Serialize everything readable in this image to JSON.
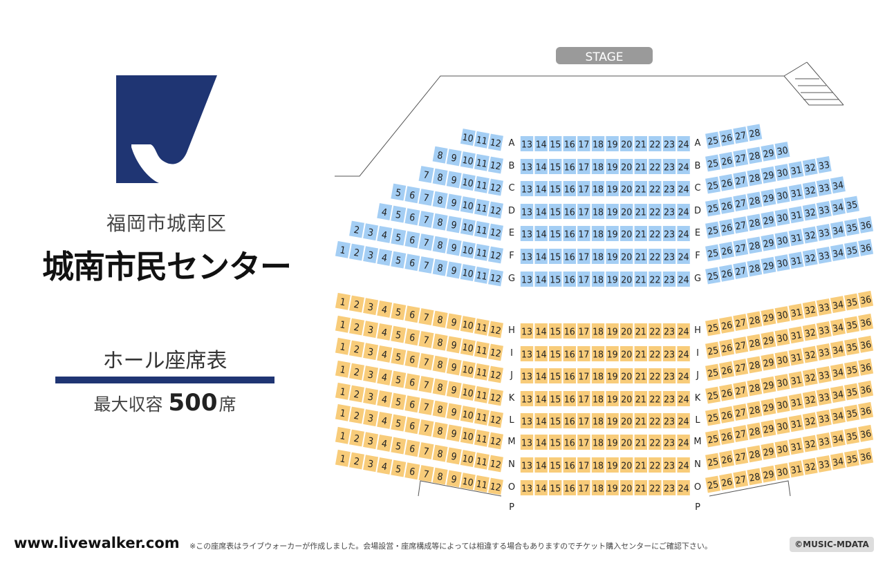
{
  "venue": {
    "subtitle": "福岡市城南区",
    "name": "城南市民センター"
  },
  "hall": {
    "title": "ホール座席表",
    "capacity_label": "最大収容",
    "capacity_value": "500",
    "capacity_unit": "席"
  },
  "stage": {
    "label": "STAGE"
  },
  "colors": {
    "upper": "#a4cef4",
    "lower": "#f8cc7a",
    "brand": "#1f3573"
  },
  "seating": {
    "upper": [
      {
        "row": "A",
        "left": [
          "10",
          "11",
          "12"
        ],
        "center": [
          "13",
          "14",
          "15",
          "16",
          "17",
          "18",
          "19",
          "20",
          "21",
          "22",
          "23",
          "24"
        ],
        "right": [
          "25",
          "26",
          "27",
          "28"
        ]
      },
      {
        "row": "B",
        "left": [
          "8",
          "9",
          "10",
          "11",
          "12"
        ],
        "center": [
          "13",
          "14",
          "15",
          "16",
          "17",
          "18",
          "19",
          "20",
          "21",
          "22",
          "23",
          "24"
        ],
        "right": [
          "25",
          "26",
          "27",
          "28",
          "29",
          "30"
        ]
      },
      {
        "row": "C",
        "left": [
          "7",
          "8",
          "9",
          "10",
          "11",
          "12"
        ],
        "center": [
          "13",
          "14",
          "15",
          "16",
          "17",
          "18",
          "19",
          "20",
          "21",
          "22",
          "23",
          "24"
        ],
        "right": [
          "25",
          "26",
          "27",
          "28",
          "29",
          "30",
          "31",
          "32",
          "33"
        ]
      },
      {
        "row": "D",
        "left": [
          "5",
          "6",
          "7",
          "8",
          "9",
          "10",
          "11",
          "12"
        ],
        "center": [
          "13",
          "14",
          "15",
          "16",
          "17",
          "18",
          "19",
          "20",
          "21",
          "22",
          "23",
          "24"
        ],
        "right": [
          "25",
          "26",
          "27",
          "28",
          "29",
          "30",
          "31",
          "32",
          "33",
          "34"
        ]
      },
      {
        "row": "E",
        "left": [
          "4",
          "5",
          "6",
          "7",
          "8",
          "9",
          "10",
          "11",
          "12"
        ],
        "center": [
          "13",
          "14",
          "15",
          "16",
          "17",
          "18",
          "19",
          "20",
          "21",
          "22",
          "23",
          "24"
        ],
        "right": [
          "25",
          "26",
          "27",
          "28",
          "29",
          "30",
          "31",
          "32",
          "33",
          "34",
          "35"
        ]
      },
      {
        "row": "F",
        "left": [
          "2",
          "3",
          "4",
          "5",
          "6",
          "7",
          "8",
          "9",
          "10",
          "11",
          "12"
        ],
        "center": [
          "13",
          "14",
          "15",
          "16",
          "17",
          "18",
          "19",
          "20",
          "21",
          "22",
          "23",
          "24"
        ],
        "right": [
          "25",
          "26",
          "27",
          "28",
          "29",
          "30",
          "31",
          "32",
          "33",
          "34",
          "35",
          "36"
        ]
      },
      {
        "row": "G",
        "left": [
          "1",
          "2",
          "3",
          "4",
          "5",
          "6",
          "7",
          "8",
          "9",
          "10",
          "11",
          "12"
        ],
        "center": [
          "13",
          "14",
          "15",
          "16",
          "17",
          "18",
          "19",
          "20",
          "21",
          "22",
          "23",
          "24"
        ],
        "right": [
          "25",
          "26",
          "27",
          "28",
          "29",
          "30",
          "31",
          "32",
          "33",
          "34",
          "35",
          "36"
        ]
      }
    ],
    "lower": [
      {
        "row": "H",
        "left": [
          "1",
          "2",
          "3",
          "4",
          "5",
          "6",
          "7",
          "8",
          "9",
          "10",
          "11",
          "12"
        ],
        "center": [
          "13",
          "14",
          "15",
          "16",
          "17",
          "18",
          "19",
          "20",
          "21",
          "22",
          "23",
          "24"
        ],
        "right": [
          "25",
          "26",
          "27",
          "28",
          "29",
          "30",
          "31",
          "32",
          "33",
          "34",
          "35",
          "36"
        ]
      },
      {
        "row": "I",
        "left": [
          "1",
          "2",
          "3",
          "4",
          "5",
          "6",
          "7",
          "8",
          "9",
          "10",
          "11",
          "12"
        ],
        "center": [
          "13",
          "14",
          "15",
          "16",
          "17",
          "18",
          "19",
          "20",
          "21",
          "22",
          "23",
          "24"
        ],
        "right": [
          "25",
          "26",
          "27",
          "28",
          "29",
          "30",
          "31",
          "32",
          "33",
          "34",
          "35",
          "36"
        ]
      },
      {
        "row": "J",
        "left": [
          "1",
          "2",
          "3",
          "4",
          "5",
          "6",
          "7",
          "8",
          "9",
          "10",
          "11",
          "12"
        ],
        "center": [
          "13",
          "14",
          "15",
          "16",
          "17",
          "18",
          "19",
          "20",
          "21",
          "22",
          "23",
          "24"
        ],
        "right": [
          "25",
          "26",
          "27",
          "28",
          "29",
          "30",
          "31",
          "32",
          "33",
          "34",
          "35",
          "36"
        ]
      },
      {
        "row": "K",
        "left": [
          "1",
          "2",
          "3",
          "4",
          "5",
          "6",
          "7",
          "8",
          "9",
          "10",
          "11",
          "12"
        ],
        "center": [
          "13",
          "14",
          "15",
          "16",
          "17",
          "18",
          "19",
          "20",
          "21",
          "22",
          "23",
          "24"
        ],
        "right": [
          "25",
          "26",
          "27",
          "28",
          "29",
          "30",
          "31",
          "32",
          "33",
          "34",
          "35",
          "36"
        ]
      },
      {
        "row": "L",
        "left": [
          "1",
          "2",
          "3",
          "4",
          "5",
          "6",
          "7",
          "8",
          "9",
          "10",
          "11",
          "12"
        ],
        "center": [
          "13",
          "14",
          "15",
          "16",
          "17",
          "18",
          "19",
          "20",
          "21",
          "22",
          "23",
          "24"
        ],
        "right": [
          "25",
          "26",
          "27",
          "28",
          "29",
          "30",
          "31",
          "32",
          "33",
          "34",
          "35",
          "36"
        ]
      },
      {
        "row": "M",
        "left": [
          "1",
          "2",
          "3",
          "4",
          "5",
          "6",
          "7",
          "8",
          "9",
          "10",
          "11",
          "12"
        ],
        "center": [
          "13",
          "14",
          "15",
          "16",
          "17",
          "18",
          "19",
          "20",
          "21",
          "22",
          "23",
          "24"
        ],
        "right": [
          "25",
          "26",
          "27",
          "28",
          "29",
          "30",
          "31",
          "32",
          "33",
          "34",
          "35",
          "36"
        ]
      },
      {
        "row": "N",
        "left": [
          "1",
          "2",
          "3",
          "4",
          "5",
          "6",
          "7",
          "8",
          "9",
          "10",
          "11",
          "12"
        ],
        "center": [
          "13",
          "14",
          "15",
          "16",
          "17",
          "18",
          "19",
          "20",
          "21",
          "22",
          "23",
          "24"
        ],
        "right": [
          "25",
          "26",
          "27",
          "28",
          "29",
          "30",
          "31",
          "32",
          "33",
          "34",
          "35",
          "36"
        ]
      },
      {
        "row": "O",
        "left": [
          "1",
          "2",
          "3",
          "4",
          "5",
          "6",
          "7",
          "8",
          "9",
          "10",
          "11",
          "12"
        ],
        "center": [
          "13",
          "14",
          "15",
          "16",
          "17",
          "18",
          "19",
          "20",
          "21",
          "22",
          "23",
          "24"
        ],
        "right": [
          "25",
          "26",
          "27",
          "28",
          "29",
          "30",
          "31",
          "32",
          "33",
          "34",
          "35",
          "36"
        ]
      },
      {
        "row": "P",
        "left": [],
        "center": [],
        "right": []
      }
    ]
  },
  "footer": {
    "site": "www.livewalker.com",
    "note": "※この座席表はライブウォーカーが作成しました。会場設営・座席構成等によっては相違する場合もありますのでチケット購入センターにご確認下さい。",
    "copyright": "©MUSIC-MDATA"
  }
}
